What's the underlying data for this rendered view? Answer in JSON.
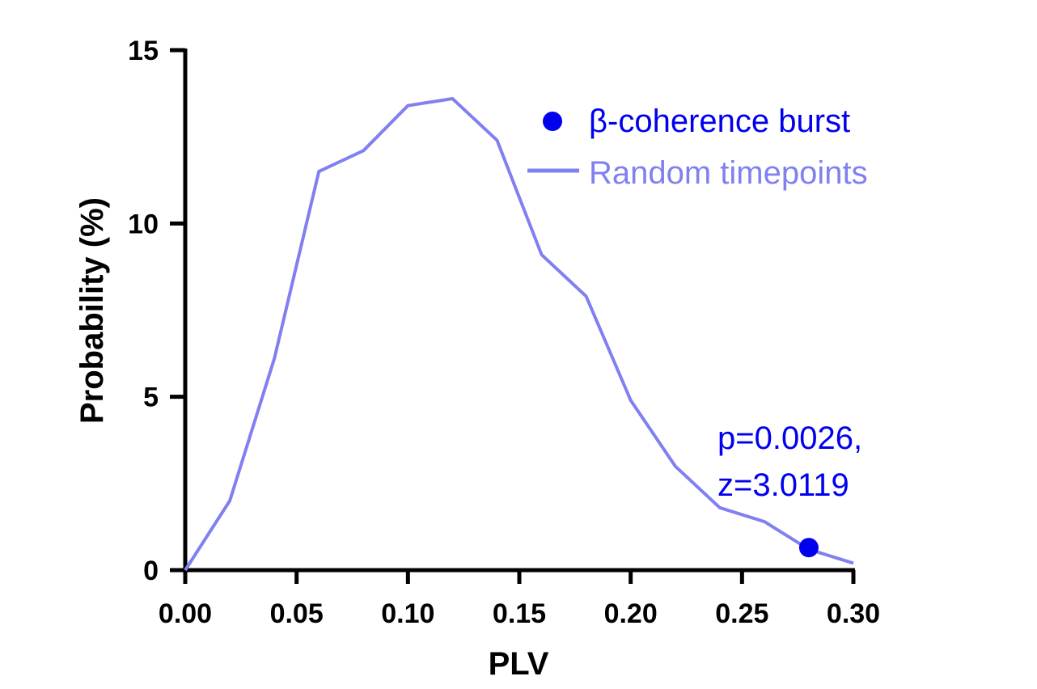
{
  "chart_data": {
    "type": "line",
    "xlabel": "PLV",
    "ylabel": "Probability (%)",
    "xlim": [
      0,
      0.3
    ],
    "ylim": [
      0,
      15
    ],
    "xticks": [
      "0.00",
      "0.05",
      "0.10",
      "0.15",
      "0.20",
      "0.25",
      "0.30"
    ],
    "yticks": [
      "0",
      "5",
      "10",
      "15"
    ],
    "grid": false,
    "legend_position": "top-right",
    "series": [
      {
        "name": "Random timepoints",
        "kind": "line",
        "color": "#8080f0",
        "x": [
          0.0,
          0.02,
          0.04,
          0.06,
          0.08,
          0.1,
          0.12,
          0.14,
          0.16,
          0.18,
          0.2,
          0.22,
          0.24,
          0.26,
          0.28,
          0.3
        ],
        "y": [
          0.0,
          2.0,
          6.1,
          11.5,
          12.1,
          13.4,
          13.6,
          12.4,
          9.1,
          7.9,
          4.9,
          3.0,
          1.8,
          1.4,
          0.6,
          0.2
        ]
      },
      {
        "name": "β-coherence burst",
        "kind": "point",
        "color": "#0000ee",
        "x": [
          0.28
        ],
        "y": [
          0.65
        ]
      }
    ],
    "annotations": [
      {
        "line1": "p=0.0026,",
        "line2": "z=3.0119",
        "color": "#0000ee"
      }
    ]
  }
}
